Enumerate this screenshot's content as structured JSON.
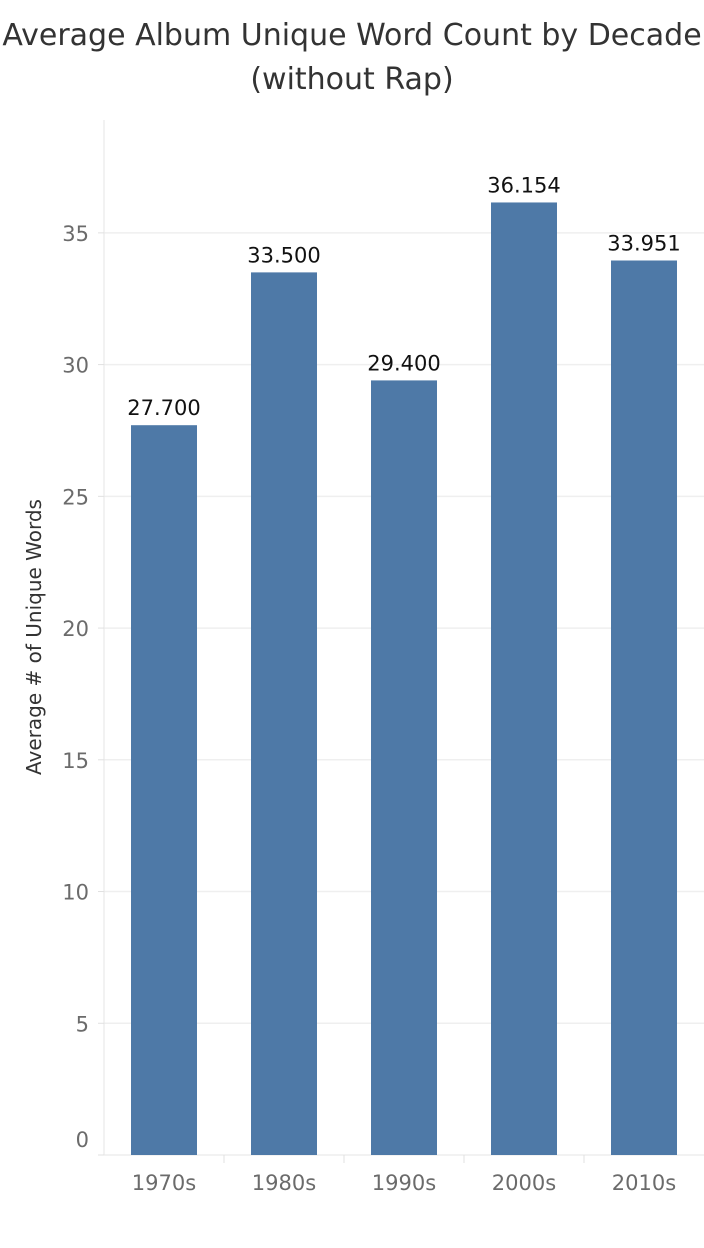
{
  "chart_data": {
    "type": "bar",
    "title": "Average Album Unique Word Count by Decade\n(without Rap)",
    "xlabel": "",
    "ylabel": "Average # of Unique Words",
    "categories": [
      "1970s",
      "1980s",
      "1990s",
      "2000s",
      "2010s"
    ],
    "values": [
      27.7,
      33.5,
      29.4,
      36.154,
      33.951
    ],
    "value_labels": [
      "27.700",
      "33.500",
      "29.400",
      "36.154",
      "33.951"
    ],
    "yticks": [
      0,
      5,
      10,
      15,
      20,
      25,
      30,
      35
    ],
    "ylim": [
      0,
      39
    ],
    "grid": true,
    "bar_color": "#4e79a7",
    "grid_color": "#efefef"
  }
}
